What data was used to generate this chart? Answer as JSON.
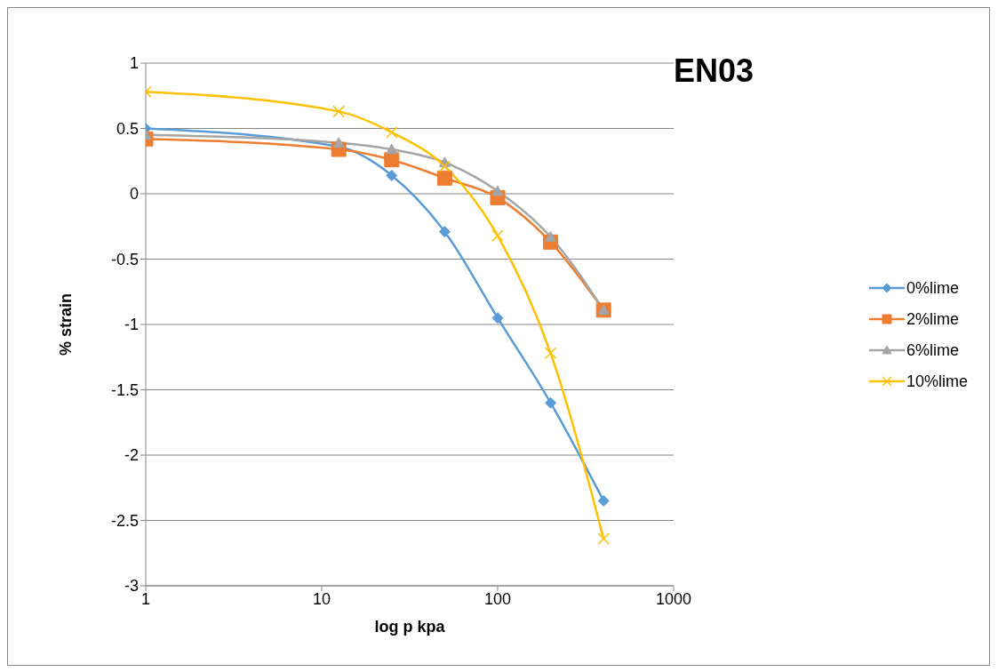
{
  "chart_data": {
    "type": "line",
    "title": "EN03",
    "xlabel": "log p kpa",
    "ylabel": "% strain",
    "x": [
      1,
      12.5,
      25,
      50,
      100,
      200,
      400
    ],
    "series": [
      {
        "name": "0%lime",
        "color": "#5b9bd5",
        "marker": "diamond",
        "values": [
          0.5,
          0.36,
          0.14,
          -0.29,
          -0.95,
          -1.6,
          -2.35
        ]
      },
      {
        "name": "2%lime",
        "color": "#ed7d31",
        "marker": "square",
        "values": [
          0.42,
          0.34,
          0.26,
          0.12,
          -0.03,
          -0.37,
          -0.89
        ]
      },
      {
        "name": "6%lime",
        "color": "#a5a5a5",
        "marker": "triangle",
        "values": [
          0.45,
          0.39,
          0.34,
          0.24,
          0.02,
          -0.33,
          -0.89
        ]
      },
      {
        "name": "10%lime",
        "color": "#ffc000",
        "marker": "cross",
        "values": [
          0.78,
          0.63,
          0.47,
          0.21,
          -0.32,
          -1.22,
          -2.64
        ]
      }
    ],
    "log": "x",
    "xlim": [
      1,
      1000
    ],
    "xticks": [
      1,
      10,
      100,
      1000
    ],
    "ylim": [
      -3,
      1
    ],
    "yticks": [
      -3,
      -2.5,
      -2,
      -1.5,
      -1,
      -0.5,
      0,
      0.5,
      1
    ],
    "grid": "y",
    "legend": "right"
  }
}
